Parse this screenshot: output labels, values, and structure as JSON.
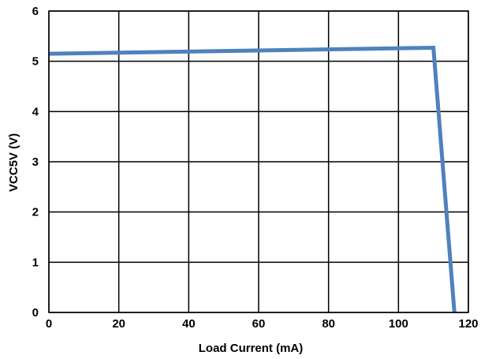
{
  "chart_data": {
    "type": "line",
    "xlabel": "Load Current (mA)",
    "ylabel": "VCC5V (V)",
    "xlim": [
      0,
      120
    ],
    "ylim": [
      0,
      6
    ],
    "xticks": [
      0,
      20,
      40,
      60,
      80,
      100,
      120
    ],
    "yticks": [
      0,
      1,
      2,
      3,
      4,
      5,
      6
    ],
    "grid": true,
    "series": [
      {
        "color": "#4f81bd",
        "x": [
          0,
          110,
          116
        ],
        "y": [
          5.15,
          5.27,
          0
        ]
      }
    ]
  }
}
